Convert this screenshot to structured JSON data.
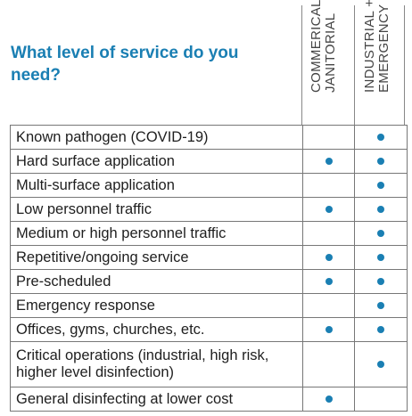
{
  "title": "What level of service do you need?",
  "columns": [
    {
      "line1": "COMMERICAL +",
      "line2": "JANITORIAL"
    },
    {
      "line1": "INDUSTRIAL +",
      "line2": "EMERGENCY"
    }
  ],
  "rows": [
    {
      "label": "Known pathogen (COVID-19)",
      "commercial": false,
      "industrial": true
    },
    {
      "label": "Hard surface application",
      "commercial": true,
      "industrial": true
    },
    {
      "label": "Multi-surface application",
      "commercial": false,
      "industrial": true
    },
    {
      "label": "Low personnel traffic",
      "commercial": true,
      "industrial": true
    },
    {
      "label": "Medium or high personnel traffic",
      "commercial": false,
      "industrial": true
    },
    {
      "label": "Repetitive/ongoing service",
      "commercial": true,
      "industrial": true
    },
    {
      "label": "Pre-scheduled",
      "commercial": true,
      "industrial": true
    },
    {
      "label": "Emergency response",
      "commercial": false,
      "industrial": true
    },
    {
      "label": "Offices, gyms, churches, etc.",
      "commercial": true,
      "industrial": true
    },
    {
      "label": "Critical operations (industrial, high risk, higher level disinfection)",
      "commercial": false,
      "industrial": true
    },
    {
      "label": "General disinfecting at lower cost",
      "commercial": true,
      "industrial": false
    }
  ],
  "colors": {
    "accent": "#1a7fb3",
    "text": "#1e1e1e",
    "border": "#777777"
  }
}
